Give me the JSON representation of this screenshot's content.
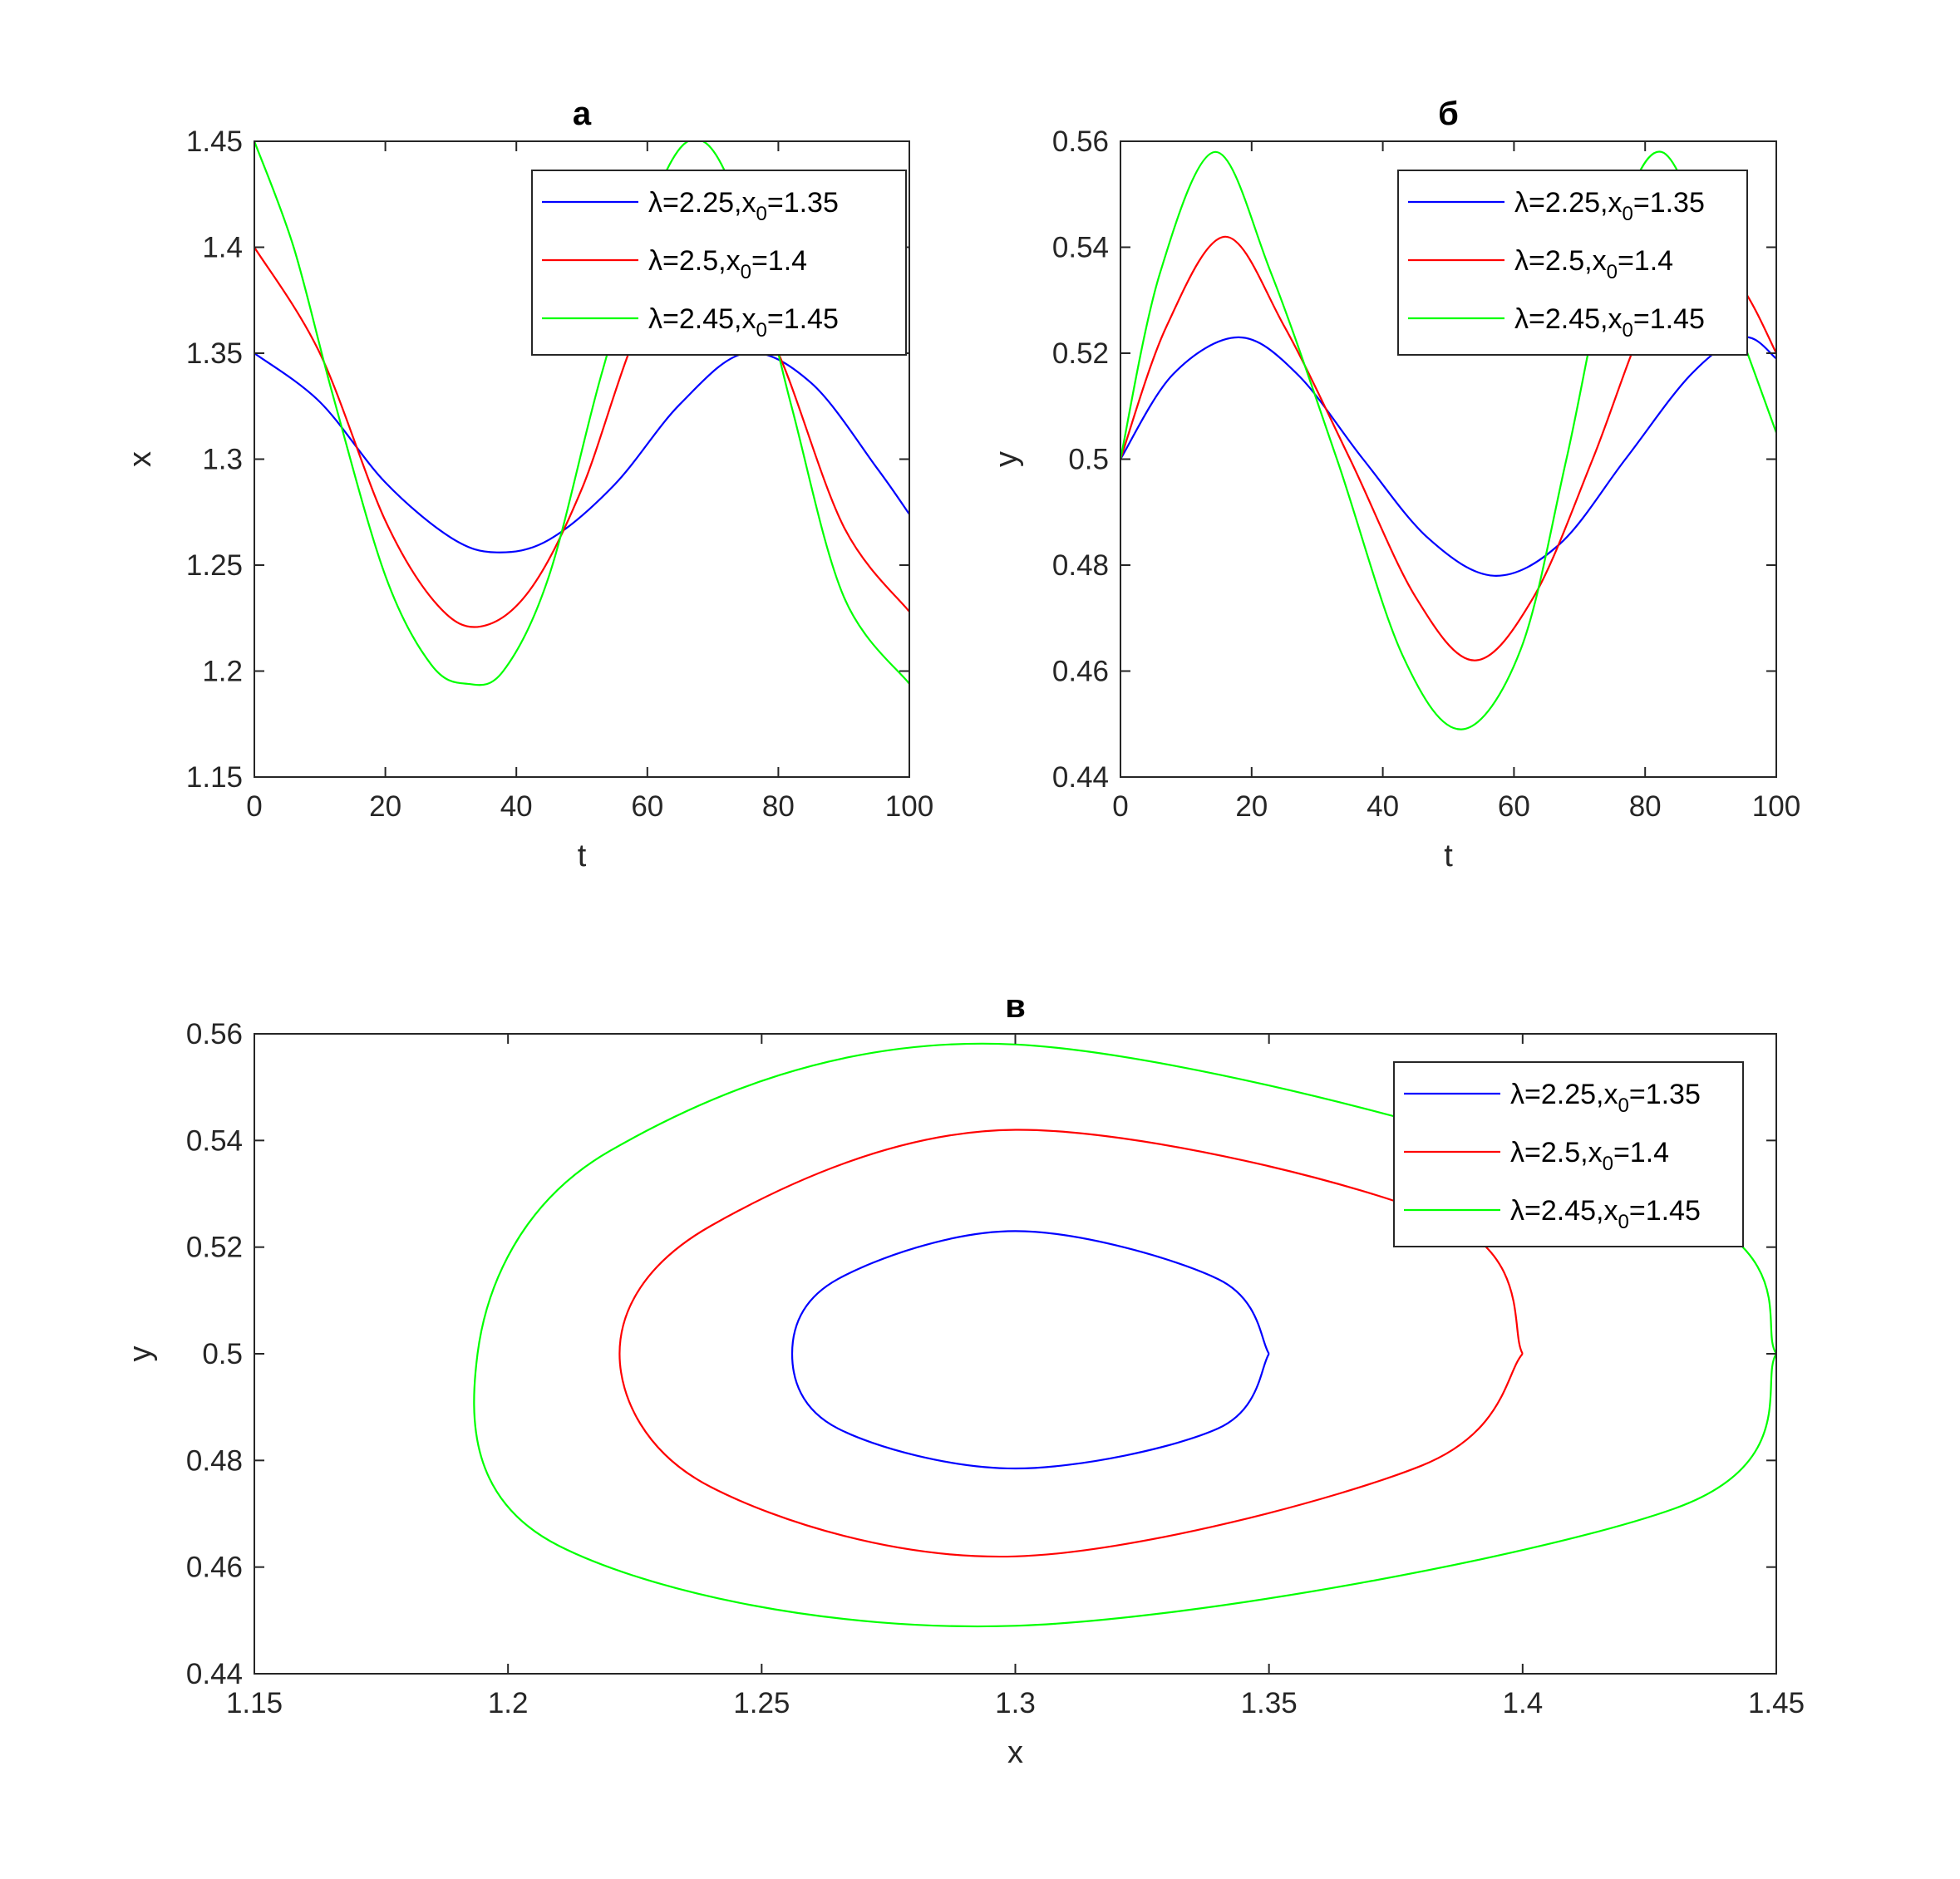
{
  "chart_data": [
    {
      "type": "line",
      "panel": "a",
      "title": "a",
      "xlabel": "t",
      "ylabel": "x",
      "xlim": [
        0,
        100
      ],
      "ylim": [
        1.15,
        1.45
      ],
      "xticks": [
        "0",
        "20",
        "40",
        "60",
        "80",
        "100"
      ],
      "yticks": [
        "1.15",
        "1.2",
        "1.25",
        "1.3",
        "1.35",
        "1.4",
        "1.45"
      ],
      "legend_position": "top-right",
      "series": [
        {
          "name": "λ=2.25,x0=1.35",
          "color": "#0000ff",
          "x": [
            0,
            10,
            20,
            30,
            37,
            45,
            55,
            65,
            75,
            85,
            95,
            100
          ],
          "y": [
            1.35,
            1.327,
            1.289,
            1.263,
            1.256,
            1.262,
            1.288,
            1.326,
            1.35,
            1.336,
            1.296,
            1.274
          ]
        },
        {
          "name": "λ=2.5,x0=1.4",
          "color": "#ff0000",
          "x": [
            0,
            10,
            20,
            28,
            34.5,
            42,
            50,
            60,
            71,
            80,
            90,
            100
          ],
          "y": [
            1.4,
            1.35,
            1.271,
            1.231,
            1.221,
            1.238,
            1.286,
            1.37,
            1.4,
            1.35,
            1.268,
            1.228
          ]
        },
        {
          "name": "λ=2.45,x0=1.45",
          "color": "#00ff00",
          "x": [
            0,
            6,
            12,
            20,
            27,
            32.5,
            38,
            45,
            53,
            62,
            68.5,
            75,
            82,
            90,
            100
          ],
          "y": [
            1.45,
            1.4,
            1.33,
            1.245,
            1.203,
            1.194,
            1.2,
            1.245,
            1.34,
            1.43,
            1.45,
            1.41,
            1.325,
            1.235,
            1.194
          ]
        }
      ]
    },
    {
      "type": "line",
      "panel": "б",
      "title": "б",
      "xlabel": "t",
      "ylabel": "y",
      "xlim": [
        0,
        100
      ],
      "ylim": [
        0.44,
        0.56
      ],
      "xticks": [
        "0",
        "20",
        "40",
        "60",
        "80",
        "100"
      ],
      "yticks": [
        "0.44",
        "0.46",
        "0.48",
        "0.5",
        "0.52",
        "0.54",
        "0.56"
      ],
      "legend_position": "top-right",
      "series": [
        {
          "name": "λ=2.25,x0=1.35",
          "color": "#0000ff",
          "x": [
            0,
            8,
            18,
            27,
            37,
            47,
            57,
            67,
            77,
            87,
            95,
            100
          ],
          "y": [
            0.5,
            0.516,
            0.523,
            0.516,
            0.5,
            0.485,
            0.478,
            0.484,
            0.5,
            0.516,
            0.523,
            0.519
          ]
        },
        {
          "name": "λ=2.5,x0=1.4",
          "color": "#ff0000",
          "x": [
            0,
            7,
            16,
            25,
            35,
            45,
            54,
            63,
            72,
            80,
            88,
            95,
            100
          ],
          "y": [
            0.5,
            0.525,
            0.542,
            0.525,
            0.5,
            0.474,
            0.462,
            0.474,
            0.5,
            0.526,
            0.542,
            0.532,
            0.52
          ]
        },
        {
          "name": "λ=2.45,x0=1.45",
          "color": "#00ff00",
          "x": [
            0,
            6,
            14.5,
            23,
            33,
            43,
            52,
            61,
            68,
            75,
            82.5,
            91,
            100
          ],
          "y": [
            0.5,
            0.535,
            0.558,
            0.535,
            0.5,
            0.463,
            0.449,
            0.464,
            0.5,
            0.54,
            0.558,
            0.535,
            0.505
          ]
        }
      ]
    },
    {
      "type": "line",
      "panel": "в",
      "title": "в",
      "xlabel": "x",
      "ylabel": "y",
      "xlim": [
        1.15,
        1.45
      ],
      "ylim": [
        0.44,
        0.56
      ],
      "xticks": [
        "1.15",
        "1.2",
        "1.25",
        "1.3",
        "1.35",
        "1.4",
        "1.45"
      ],
      "yticks": [
        "0.44",
        "0.46",
        "0.48",
        "0.5",
        "0.52",
        "0.54",
        "0.56"
      ],
      "legend_position": "top-right",
      "series": [
        {
          "name": "λ=2.25,x0=1.35",
          "color": "#0000ff",
          "x": [
            1.35,
            1.34,
            1.3,
            1.265,
            1.256,
            1.265,
            1.3,
            1.34,
            1.35
          ],
          "y": [
            0.5,
            0.514,
            0.523,
            0.514,
            0.5,
            0.486,
            0.4785,
            0.486,
            0.5
          ]
        },
        {
          "name": "λ=2.5,x0=1.4",
          "color": "#ff0000",
          "x": [
            1.4,
            1.385,
            1.3,
            1.24,
            1.222,
            1.24,
            1.3,
            1.38,
            1.4
          ],
          "y": [
            0.5,
            0.525,
            0.542,
            0.524,
            0.5,
            0.475,
            0.462,
            0.479,
            0.5
          ]
        },
        {
          "name": "λ=2.45,x0=1.45",
          "color": "#00ff00",
          "x": [
            1.45,
            1.43,
            1.3,
            1.22,
            1.194,
            1.21,
            1.3,
            1.43,
            1.45
          ],
          "y": [
            0.5,
            0.528,
            0.558,
            0.538,
            0.5,
            0.464,
            0.449,
            0.471,
            0.5
          ]
        }
      ]
    }
  ]
}
